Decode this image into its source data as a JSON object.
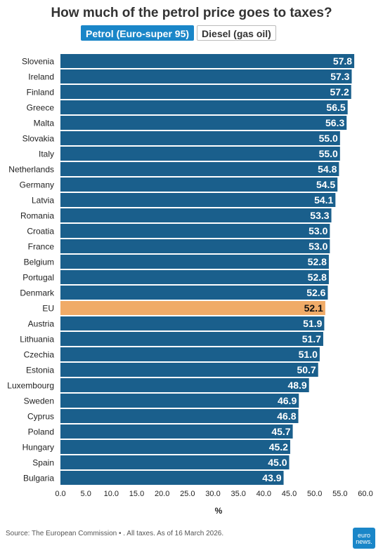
{
  "title": "How much of the petrol price goes to taxes?",
  "tabs": [
    {
      "label": "Petrol (Euro-super 95)",
      "active": true
    },
    {
      "label": "Diesel (gas oil)",
      "active": false
    }
  ],
  "source": "Source: The European Commission • . All taxes. As of 16 March 2026.",
  "logo": {
    "text": "euro news."
  },
  "colors": {
    "bar": "#1a5f8c",
    "highlight": "#f0ab68",
    "tab_active": "#1a86c8"
  },
  "chart_data": {
    "type": "bar",
    "orientation": "horizontal",
    "categories": [
      "Slovenia",
      "Ireland",
      "Finland",
      "Greece",
      "Malta",
      "Slovakia",
      "Italy",
      "Netherlands",
      "Germany",
      "Latvia",
      "Romania",
      "Croatia",
      "France",
      "Belgium",
      "Portugal",
      "Denmark",
      "EU",
      "Austria",
      "Lithuania",
      "Czechia",
      "Estonia",
      "Luxembourg",
      "Sweden",
      "Cyprus",
      "Poland",
      "Hungary",
      "Spain",
      "Bulgaria"
    ],
    "values": [
      57.8,
      57.3,
      57.2,
      56.5,
      56.3,
      55.0,
      55.0,
      54.8,
      54.5,
      54.1,
      53.3,
      53.0,
      53.0,
      52.8,
      52.8,
      52.6,
      52.1,
      51.9,
      51.7,
      51.0,
      50.7,
      48.9,
      46.9,
      46.8,
      45.7,
      45.2,
      45.0,
      43.9
    ],
    "highlight": "EU",
    "xlabel": "%",
    "xlim": [
      0,
      60
    ],
    "xticks": [
      "0.0",
      "5.0",
      "10.0",
      "15.0",
      "20.0",
      "25.0",
      "30.0",
      "35.0",
      "40.0",
      "45.0",
      "50.0",
      "55.0",
      "60.0"
    ],
    "grid": false
  }
}
